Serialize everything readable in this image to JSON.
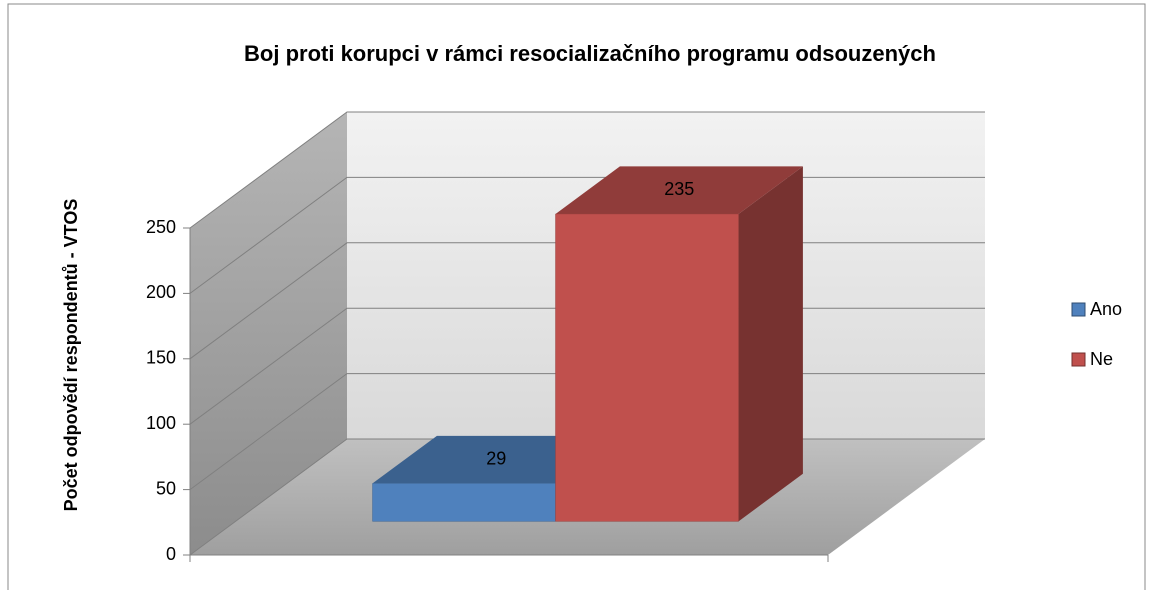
{
  "chart_data": {
    "type": "bar3d",
    "title": "Boj proti korupci v rámci resocializačního programu odsouzených",
    "y_label": "Počet odpovědí respondentů - VTOS",
    "categories": [
      null
    ],
    "series": [
      {
        "name": "Ano",
        "color": "#4f81bd",
        "values": [
          29
        ]
      },
      {
        "name": "Ne",
        "color": "#c0504d",
        "values": [
          235
        ]
      }
    ],
    "ylim": [
      0,
      250
    ],
    "yticks": [
      0,
      50,
      100,
      150,
      200,
      250
    ],
    "grid": true,
    "legend": "right"
  }
}
